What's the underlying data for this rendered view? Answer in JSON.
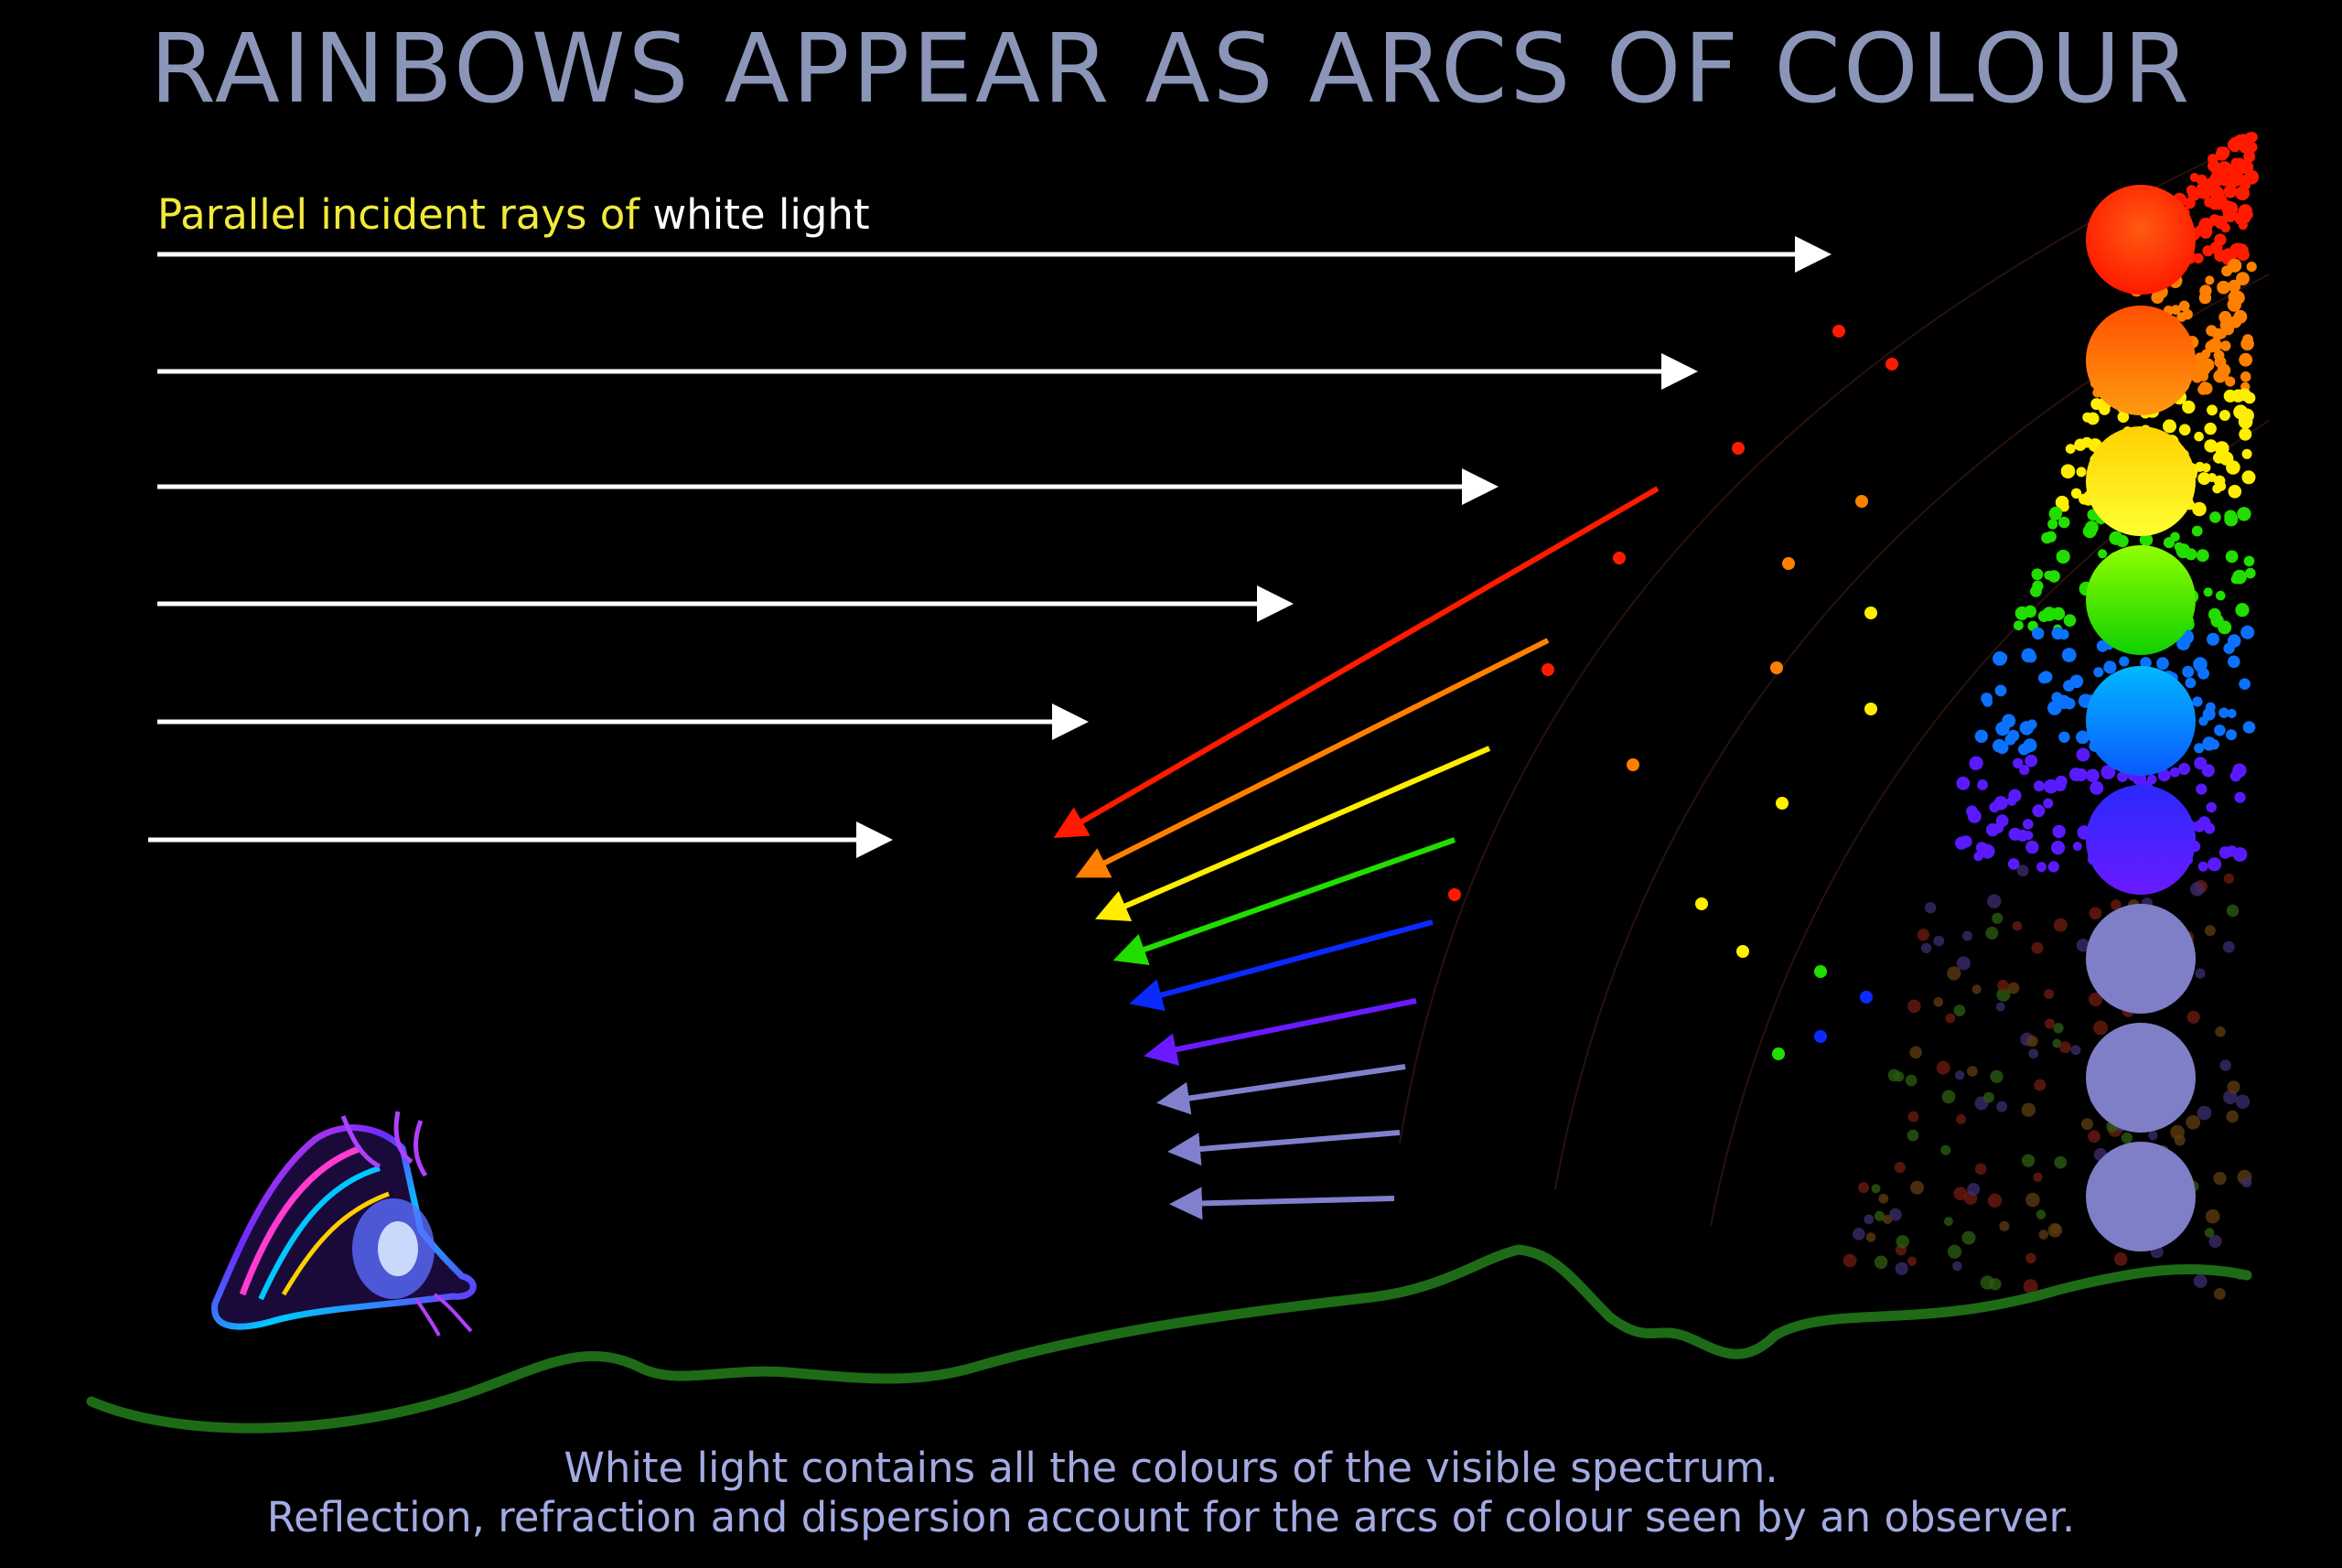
{
  "title": "RAINBOWS APPEAR AS ARCS OF COLOUR",
  "incident_label": {
    "part1": "Parallel incident rays of ",
    "part2": "white light"
  },
  "caption": {
    "line1": "White light contains all the colours of the visible spectrum.",
    "line2": "Reflection, refraction and dispersion account for the arcs of colour seen by an observer."
  },
  "colors": {
    "background": "#000000",
    "title": "#8b95b8",
    "label_yellow": "#f2ea3b",
    "caption": "#a3abe3",
    "ground": "#1e6b17",
    "spectrum": [
      "#ff1a00",
      "#ff8000",
      "#ffee00",
      "#22dd00",
      "#0a72ff",
      "#5a1aff",
      "#7f7fc8",
      "#7f7fc8",
      "#7f7fc8"
    ]
  },
  "incident_ray_count": 6,
  "refracted_ray_colors": [
    "red",
    "orange",
    "yellow",
    "green",
    "blue",
    "violet",
    "lavender",
    "lavender",
    "lavender"
  ],
  "observer": "eye-icon"
}
